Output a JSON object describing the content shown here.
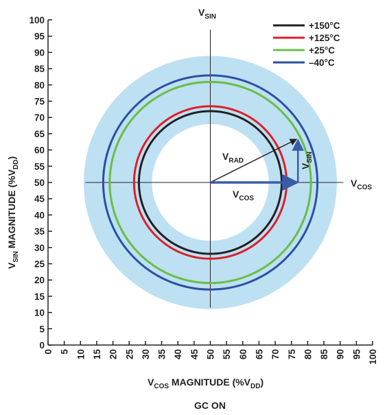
{
  "chart_data": {
    "type": "scatter",
    "title": "",
    "xlabel": {
      "main": "V",
      "sub": "COS",
      "rest": " MAGNITUDE (%V",
      "sub2": "DD",
      "end": ")"
    },
    "ylabel": {
      "main": "V",
      "sub": "SIN",
      "rest": " MAGNITUDE (%V",
      "sub2": "DD",
      "end": ")"
    },
    "caption": "GC ON",
    "xlim": [
      0,
      100
    ],
    "ylim": [
      0,
      100
    ],
    "xticks": [
      "0",
      "5",
      "10",
      "15",
      "20",
      "25",
      "30",
      "35",
      "40",
      "45",
      "50",
      "55",
      "60",
      "65",
      "70",
      "75",
      "80",
      "85",
      "90",
      "95",
      "100"
    ],
    "yticks": [
      "0",
      "5",
      "10",
      "15",
      "20",
      "25",
      "30",
      "35",
      "40",
      "45",
      "50",
      "55",
      "60",
      "65",
      "70",
      "75",
      "80",
      "85",
      "90",
      "95",
      "100"
    ],
    "center": [
      50,
      50
    ],
    "shaded_band": {
      "inner_radius": 18,
      "outer_radius": 39,
      "color": "#bde0f3"
    },
    "series": [
      {
        "name": "+150°C",
        "radius": 22,
        "color": "#231f20"
      },
      {
        "name": "+125°C",
        "radius": 23.5,
        "color": "#e01e26"
      },
      {
        "name": "+25°C",
        "radius": 31,
        "color": "#6abd45"
      },
      {
        "name": "–40°C",
        "radius": 33,
        "color": "#2b4fa3"
      }
    ],
    "axis_labels": {
      "v_sin": {
        "main": "V",
        "sub": "SIN"
      },
      "v_cos": {
        "main": "V",
        "sub": "COS"
      }
    },
    "vectors": {
      "rad": {
        "label_main": "V",
        "label_sub": "RAD",
        "end": [
          77,
          63.5
        ]
      },
      "cos": {
        "label_main": "V",
        "label_sub": "COS",
        "end": [
          77,
          50
        ]
      },
      "sin": {
        "label_main": "V",
        "label_sub": "SIN",
        "end": [
          77,
          63.5
        ]
      }
    },
    "vector_color": "#3a5ba7",
    "arrow_color": "#231f20",
    "legend_position": "top-right",
    "grid": false
  }
}
